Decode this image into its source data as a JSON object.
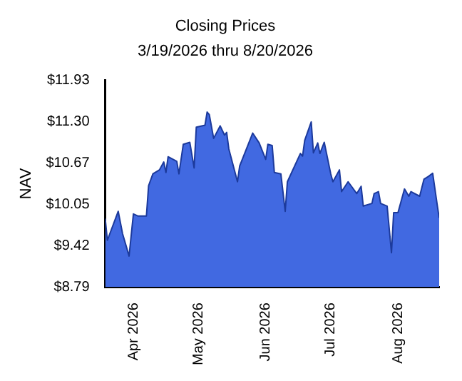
{
  "chart_data": {
    "type": "area",
    "title": "Closing Prices",
    "subtitle": "3/19/2026 thru 8/20/2026",
    "ylabel": "NAV",
    "x": [
      "2026-03-19",
      "2026-03-20",
      "2026-03-25",
      "2026-03-27",
      "2026-03-30",
      "2026-04-01",
      "2026-04-03",
      "2026-04-07",
      "2026-04-08",
      "2026-04-10",
      "2026-04-13",
      "2026-04-15",
      "2026-04-16",
      "2026-04-17",
      "2026-04-21",
      "2026-04-22",
      "2026-04-24",
      "2026-04-27",
      "2026-04-29",
      "2026-04-30",
      "2026-05-04",
      "2026-05-05",
      "2026-05-06",
      "2026-05-08",
      "2026-05-11",
      "2026-05-13",
      "2026-05-14",
      "2026-05-15",
      "2026-05-19",
      "2026-05-20",
      "2026-05-26",
      "2026-05-29",
      "2026-06-01",
      "2026-06-02",
      "2026-06-04",
      "2026-06-05",
      "2026-06-08",
      "2026-06-10",
      "2026-06-11",
      "2026-06-17",
      "2026-06-18",
      "2026-06-19",
      "2026-06-22",
      "2026-06-23",
      "2026-06-25",
      "2026-06-26",
      "2026-06-28",
      "2026-07-01",
      "2026-07-02",
      "2026-07-05",
      "2026-07-06",
      "2026-07-09",
      "2026-07-11",
      "2026-07-13",
      "2026-07-15",
      "2026-07-16",
      "2026-07-20",
      "2026-07-21",
      "2026-07-23",
      "2026-07-24",
      "2026-07-27",
      "2026-07-29",
      "2026-07-30",
      "2026-08-01",
      "2026-08-04",
      "2026-08-06",
      "2026-08-07",
      "2026-08-11",
      "2026-08-13",
      "2026-08-15",
      "2026-08-17",
      "2026-08-19",
      "2026-08-20"
    ],
    "series": [
      {
        "color": "#4169e1",
        "values": [
          9.83,
          9.5,
          9.94,
          9.6,
          9.26,
          9.9,
          9.87,
          9.87,
          10.33,
          10.51,
          10.57,
          10.69,
          10.53,
          10.77,
          10.7,
          10.51,
          10.96,
          10.99,
          10.6,
          11.22,
          11.25,
          11.45,
          11.41,
          11.05,
          11.24,
          11.1,
          11.14,
          10.89,
          10.39,
          10.63,
          11.13,
          10.98,
          10.73,
          10.96,
          10.94,
          10.53,
          10.51,
          9.94,
          10.39,
          10.82,
          10.78,
          11.02,
          11.3,
          10.83,
          10.98,
          10.82,
          10.99,
          10.51,
          10.39,
          10.57,
          10.24,
          10.39,
          10.3,
          10.21,
          10.32,
          10.02,
          10.06,
          10.21,
          10.24,
          10.06,
          10.02,
          9.31,
          9.92,
          9.92,
          10.28,
          10.17,
          10.24,
          10.17,
          10.43,
          10.47,
          10.52,
          10.06,
          9.84
        ]
      }
    ],
    "xlim": [
      "2026-03-19",
      "2026-08-20"
    ],
    "xticks": [
      {
        "value": "2026-04-01",
        "label": "Apr 2026"
      },
      {
        "value": "2026-05-01",
        "label": "May 2026"
      },
      {
        "value": "2026-06-01",
        "label": "Jun 2026"
      },
      {
        "value": "2026-07-01",
        "label": "Jul 2026"
      },
      {
        "value": "2026-08-01",
        "label": "Aug 2026"
      }
    ],
    "ylim": [
      8.79,
      11.93
    ],
    "yticks": [
      {
        "value": 8.79,
        "label": "$8.79"
      },
      {
        "value": 9.42,
        "label": "$9.42"
      },
      {
        "value": 10.05,
        "label": "$10.05"
      },
      {
        "value": 10.67,
        "label": "$10.67"
      },
      {
        "value": 11.3,
        "label": "$11.30"
      },
      {
        "value": 11.93,
        "label": "$11.93"
      }
    ],
    "grid": false,
    "legend": false
  }
}
